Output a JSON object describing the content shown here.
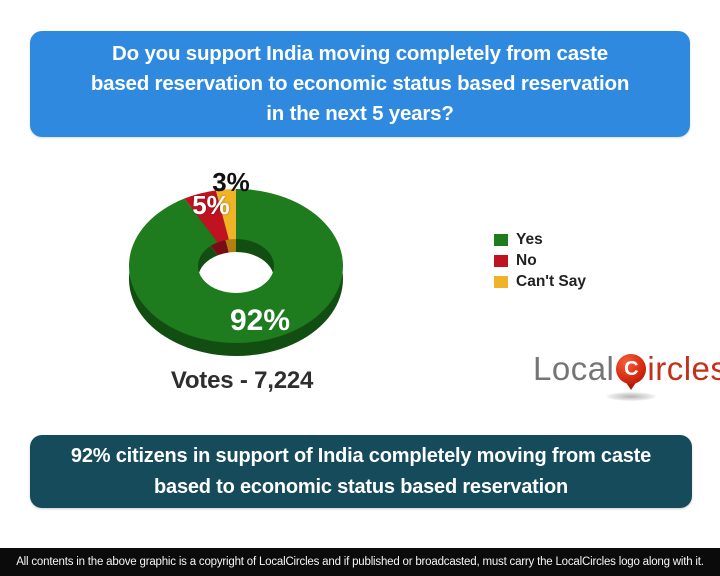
{
  "question": {
    "text": "Do you support India moving completely from caste\nbased reservation to economic status based reservation\nin the next 5 years?"
  },
  "chart": {
    "votes_label": "Votes - 7,224",
    "slice_labels": {
      "yes": "92%",
      "no": "5%",
      "cant_say": "3%"
    }
  },
  "chart_data": {
    "type": "pie",
    "donut": true,
    "title": "Do you support India moving completely from caste based reservation to economic status based reservation in the next 5 years?",
    "categories": [
      "Yes",
      "No",
      "Can't Say"
    ],
    "values": [
      92,
      5,
      3
    ],
    "unit": "percent",
    "colors": [
      "#1e7b1e",
      "#bf1321",
      "#f0b226"
    ],
    "depth_colors": [
      "#124e12",
      "#7a0c14",
      "#b07f10"
    ],
    "votes_total": "7,224",
    "legend_position": "right",
    "start_angle_deg": 0,
    "direction": "clockwise"
  },
  "legend": {
    "items": [
      {
        "label": "Yes",
        "color": "#1e7b1e"
      },
      {
        "label": "No",
        "color": "#bf1321"
      },
      {
        "label": "Can't Say",
        "color": "#f0b226"
      }
    ]
  },
  "logo": {
    "part1": "Local",
    "pin_letter": "C",
    "part2": "ircles",
    "gray": "#757575",
    "red": "#c43019"
  },
  "summary": {
    "text": "92% citizens in support of India completely moving from caste\nbased to economic status based reservation"
  },
  "footer": {
    "text": "All contents in the above graphic is a copyright of LocalCircles and if published or broadcasted, must carry the LocalCircles logo along with it."
  },
  "colors": {
    "question_banner_bg": "#2f89df",
    "summary_banner_bg": "#154b5a",
    "footer_bg": "#0b0b0b",
    "text_on_banner": "#ffffff"
  }
}
